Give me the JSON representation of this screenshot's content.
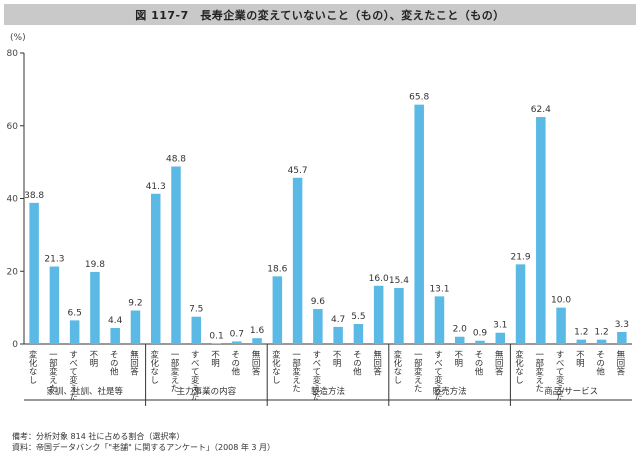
{
  "title": "図 117-7　長寿企業の変えていないこと（もの）、変えたこと（もの）",
  "notes": [
    "備考：分析対象 814 社に占める割合（選択率）",
    "資料：帝国データバンク「\"老舗\" に関するアンケート」（2008 年 3 月）"
  ],
  "colors": {
    "bar": "#5bb9e6",
    "axis": "#333333",
    "title_bg": "#c9c9c9"
  },
  "chart_data": {
    "type": "bar",
    "unit": "(%)",
    "ylim": [
      0,
      80
    ],
    "yticks": [
      0,
      20,
      40,
      60,
      80
    ],
    "grid": false,
    "groups": [
      {
        "name": "家訓、社訓、社是等",
        "categories": [
          "変化なし",
          "一部変えた",
          "すべて変えた",
          "不明",
          "その他",
          "無回答"
        ],
        "values": [
          38.8,
          21.3,
          6.5,
          19.8,
          4.4,
          9.2
        ]
      },
      {
        "name": "主力事業の内容",
        "categories": [
          "変化なし",
          "一部変えた",
          "すべて変えた",
          "不明",
          "その他",
          "無回答"
        ],
        "values": [
          41.3,
          48.8,
          7.5,
          0.1,
          0.7,
          1.6
        ]
      },
      {
        "name": "製造方法",
        "categories": [
          "変化なし",
          "一部変えた",
          "すべて変えた",
          "不明",
          "その他",
          "無回答"
        ],
        "values": [
          18.6,
          45.7,
          9.6,
          4.7,
          5.5,
          16.0
        ]
      },
      {
        "name": "販売方法",
        "categories": [
          "変化なし",
          "一部変えた",
          "すべて変えた",
          "不明",
          "その他",
          "無回答"
        ],
        "values": [
          15.4,
          65.8,
          13.1,
          2.0,
          0.9,
          3.1
        ]
      },
      {
        "name": "商品/サービス",
        "categories": [
          "変化なし",
          "一部変えた",
          "すべて変えた",
          "不明",
          "その他",
          "無回答"
        ],
        "values": [
          21.9,
          62.4,
          10.0,
          1.2,
          1.2,
          3.3
        ]
      }
    ]
  }
}
